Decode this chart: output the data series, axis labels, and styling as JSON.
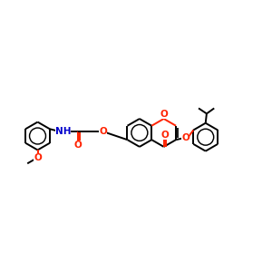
{
  "bg_color": "#ffffff",
  "bond_color": "#000000",
  "o_color": "#ff2200",
  "n_color": "#0000cc",
  "lw": 1.4,
  "fs": 7.5,
  "fig_size": [
    3.0,
    3.0
  ],
  "dpi": 100,
  "xlim": [
    0,
    10
  ],
  "ylim": [
    2,
    8
  ]
}
